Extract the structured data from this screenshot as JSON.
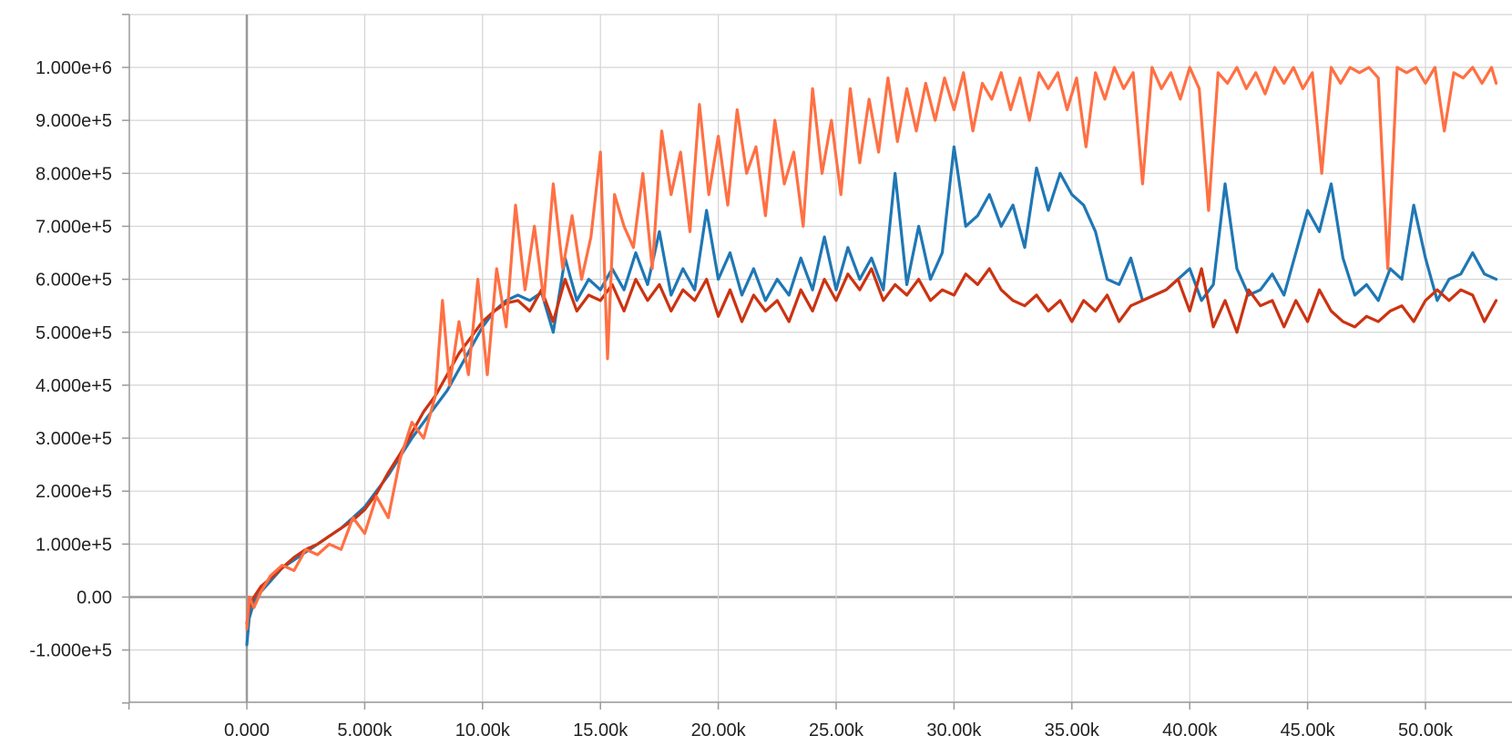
{
  "chart_data": {
    "type": "line",
    "title": "",
    "xlabel": "",
    "ylabel": "",
    "xlim": [
      -5000,
      53000
    ],
    "ylim": [
      -200000,
      1100000
    ],
    "grid": true,
    "legend": "none",
    "x_ticks": [
      {
        "value": 0,
        "label": "0.000"
      },
      {
        "value": 5000,
        "label": "5.000k"
      },
      {
        "value": 10000,
        "label": "10.00k"
      },
      {
        "value": 15000,
        "label": "15.00k"
      },
      {
        "value": 20000,
        "label": "20.00k"
      },
      {
        "value": 25000,
        "label": "25.00k"
      },
      {
        "value": 30000,
        "label": "30.00k"
      },
      {
        "value": 35000,
        "label": "35.00k"
      },
      {
        "value": 40000,
        "label": "40.00k"
      },
      {
        "value": 45000,
        "label": "45.00k"
      },
      {
        "value": 50000,
        "label": "50.00k"
      }
    ],
    "y_ticks": [
      {
        "value": 1000000,
        "label": "1.000e+6"
      },
      {
        "value": 900000,
        "label": "9.000e+5"
      },
      {
        "value": 800000,
        "label": "8.000e+5"
      },
      {
        "value": 700000,
        "label": "7.000e+5"
      },
      {
        "value": 600000,
        "label": "6.000e+5"
      },
      {
        "value": 500000,
        "label": "5.000e+5"
      },
      {
        "value": 400000,
        "label": "4.000e+5"
      },
      {
        "value": 300000,
        "label": "3.000e+5"
      },
      {
        "value": 200000,
        "label": "2.000e+5"
      },
      {
        "value": 100000,
        "label": "1.000e+5"
      },
      {
        "value": 0,
        "label": "0.00"
      },
      {
        "value": -100000,
        "label": "-1.000e+5"
      }
    ],
    "series": [
      {
        "color": "#1f77b4",
        "x": [
          0,
          100,
          300,
          600,
          1000,
          1500,
          2000,
          2500,
          3000,
          3500,
          4000,
          4500,
          5000,
          5500,
          6000,
          6500,
          7000,
          7500,
          8000,
          8500,
          9000,
          9500,
          10000,
          10500,
          11000,
          11500,
          12000,
          12500,
          13000,
          13500,
          14000,
          14500,
          15000,
          15500,
          16000,
          16500,
          17000,
          17500,
          18000,
          18500,
          19000,
          19500,
          20000,
          20500,
          21000,
          21500,
          22000,
          22500,
          23000,
          23500,
          24000,
          24500,
          25000,
          25500,
          26000,
          26500,
          27000,
          27500,
          28000,
          28500,
          29000,
          29500,
          30000,
          30500,
          31000,
          31500,
          32000,
          32500,
          33000,
          33500,
          34000,
          34500,
          35000,
          35500,
          36000,
          36500,
          37000,
          37500,
          38000,
          38500,
          39000,
          39500,
          40000,
          40500,
          41000,
          41500,
          42000,
          42500,
          43000,
          43500,
          44000,
          44500,
          45000,
          45500,
          46000,
          46500,
          47000,
          47500,
          48000,
          48500,
          49000,
          49500,
          50000,
          50500,
          51000,
          51500,
          52000,
          52500,
          53000
        ],
        "y": [
          -90000,
          -40000,
          -10000,
          10000,
          30000,
          55000,
          70000,
          85000,
          100000,
          115000,
          130000,
          150000,
          170000,
          200000,
          230000,
          265000,
          300000,
          330000,
          360000,
          390000,
          430000,
          470000,
          510000,
          540000,
          560000,
          570000,
          560000,
          575000,
          500000,
          640000,
          560000,
          600000,
          580000,
          620000,
          580000,
          650000,
          590000,
          690000,
          570000,
          620000,
          580000,
          730000,
          600000,
          650000,
          570000,
          620000,
          560000,
          600000,
          570000,
          640000,
          580000,
          680000,
          580000,
          660000,
          600000,
          640000,
          580000,
          800000,
          590000,
          700000,
          600000,
          650000,
          850000,
          700000,
          720000,
          760000,
          700000,
          740000,
          660000,
          810000,
          730000,
          800000,
          760000,
          740000,
          690000,
          600000,
          590000,
          640000,
          560000,
          570000,
          580000,
          600000,
          620000,
          560000,
          590000,
          780000,
          620000,
          570000,
          580000,
          610000,
          570000,
          650000,
          730000,
          690000,
          780000,
          640000,
          570000,
          590000,
          560000,
          620000,
          600000,
          740000,
          640000,
          560000,
          600000,
          610000,
          650000,
          610000,
          600000
        ],
        "name": ""
      },
      {
        "color": "#cc3311",
        "x": [
          0,
          100,
          300,
          600,
          1000,
          1500,
          2000,
          2500,
          3000,
          3500,
          4000,
          4500,
          5000,
          5500,
          6000,
          6500,
          7000,
          7500,
          8000,
          8500,
          9000,
          9500,
          10000,
          10500,
          11000,
          11500,
          12000,
          12500,
          13000,
          13500,
          14000,
          14500,
          15000,
          15500,
          16000,
          16500,
          17000,
          17500,
          18000,
          18500,
          19000,
          19500,
          20000,
          20500,
          21000,
          21500,
          22000,
          22500,
          23000,
          23500,
          24000,
          24500,
          25000,
          25500,
          26000,
          26500,
          27000,
          27500,
          28000,
          28500,
          29000,
          29500,
          30000,
          30500,
          31000,
          31500,
          32000,
          32500,
          33000,
          33500,
          34000,
          34500,
          35000,
          35500,
          36000,
          36500,
          37000,
          37500,
          38000,
          38500,
          39000,
          39500,
          40000,
          40500,
          41000,
          41500,
          42000,
          42500,
          43000,
          43500,
          44000,
          44500,
          45000,
          45500,
          46000,
          46500,
          47000,
          47500,
          48000,
          48500,
          49000,
          49500,
          50000,
          50500,
          51000,
          51500,
          52000,
          52500,
          53000
        ],
        "y": [
          -50000,
          -20000,
          0,
          20000,
          35000,
          55000,
          75000,
          90000,
          100000,
          115000,
          130000,
          145000,
          165000,
          195000,
          235000,
          270000,
          310000,
          350000,
          380000,
          420000,
          460000,
          490000,
          520000,
          540000,
          555000,
          560000,
          540000,
          580000,
          520000,
          600000,
          540000,
          570000,
          560000,
          590000,
          540000,
          600000,
          560000,
          590000,
          540000,
          580000,
          560000,
          600000,
          530000,
          580000,
          520000,
          570000,
          540000,
          560000,
          520000,
          580000,
          540000,
          600000,
          560000,
          610000,
          580000,
          620000,
          560000,
          590000,
          570000,
          600000,
          560000,
          580000,
          570000,
          610000,
          590000,
          620000,
          580000,
          560000,
          550000,
          570000,
          540000,
          560000,
          520000,
          560000,
          540000,
          570000,
          520000,
          550000,
          560000,
          570000,
          580000,
          600000,
          540000,
          620000,
          510000,
          560000,
          500000,
          580000,
          550000,
          560000,
          510000,
          560000,
          520000,
          580000,
          540000,
          520000,
          510000,
          530000,
          520000,
          540000,
          550000,
          520000,
          560000,
          580000,
          560000,
          580000,
          570000,
          520000,
          560000
        ],
        "name": ""
      },
      {
        "color": "#ff7043",
        "x": [
          0,
          100,
          300,
          600,
          1000,
          1500,
          2000,
          2500,
          3000,
          3500,
          4000,
          4500,
          5000,
          5500,
          6000,
          6500,
          7000,
          7500,
          8000,
          8300,
          8600,
          9000,
          9400,
          9800,
          10200,
          10600,
          11000,
          11400,
          11800,
          12200,
          12600,
          13000,
          13400,
          13800,
          14200,
          14600,
          15000,
          15300,
          15600,
          16000,
          16400,
          16800,
          17200,
          17600,
          18000,
          18400,
          18800,
          19200,
          19600,
          20000,
          20400,
          20800,
          21200,
          21600,
          22000,
          22400,
          22800,
          23200,
          23600,
          24000,
          24400,
          24800,
          25200,
          25600,
          26000,
          26400,
          26800,
          27200,
          27600,
          28000,
          28400,
          28800,
          29200,
          29600,
          30000,
          30400,
          30800,
          31200,
          31600,
          32000,
          32400,
          32800,
          33200,
          33600,
          34000,
          34400,
          34800,
          35200,
          35600,
          36000,
          36400,
          36800,
          37200,
          37600,
          38000,
          38400,
          38800,
          39200,
          39600,
          40000,
          40400,
          40800,
          41200,
          41600,
          42000,
          42400,
          42800,
          43200,
          43600,
          44000,
          44400,
          44800,
          45200,
          45600,
          46000,
          46400,
          46800,
          47200,
          47600,
          48000,
          48400,
          48800,
          49200,
          49600,
          50000,
          50400,
          50800,
          51200,
          51600,
          52000,
          52400,
          52800,
          53000
        ],
        "y": [
          -60000,
          0,
          -20000,
          10000,
          40000,
          60000,
          50000,
          90000,
          80000,
          100000,
          90000,
          150000,
          120000,
          190000,
          150000,
          260000,
          330000,
          300000,
          380000,
          560000,
          400000,
          520000,
          420000,
          600000,
          420000,
          620000,
          510000,
          740000,
          580000,
          700000,
          560000,
          780000,
          620000,
          720000,
          600000,
          680000,
          840000,
          450000,
          760000,
          700000,
          660000,
          800000,
          620000,
          880000,
          760000,
          840000,
          690000,
          930000,
          760000,
          870000,
          740000,
          920000,
          800000,
          850000,
          720000,
          900000,
          780000,
          840000,
          700000,
          960000,
          800000,
          900000,
          760000,
          960000,
          820000,
          940000,
          840000,
          980000,
          860000,
          960000,
          880000,
          970000,
          900000,
          980000,
          920000,
          990000,
          880000,
          970000,
          940000,
          990000,
          920000,
          980000,
          900000,
          990000,
          960000,
          990000,
          920000,
          980000,
          850000,
          990000,
          940000,
          1000000,
          960000,
          990000,
          780000,
          1000000,
          960000,
          990000,
          940000,
          1000000,
          960000,
          730000,
          990000,
          970000,
          1000000,
          960000,
          990000,
          950000,
          1000000,
          970000,
          1000000,
          960000,
          990000,
          800000,
          1000000,
          970000,
          1000000,
          990000,
          1000000,
          980000,
          620000,
          1000000,
          990000,
          1000000,
          970000,
          1000000,
          880000,
          990000,
          980000,
          1000000,
          970000,
          1000000,
          970000
        ],
        "name": ""
      }
    ]
  }
}
